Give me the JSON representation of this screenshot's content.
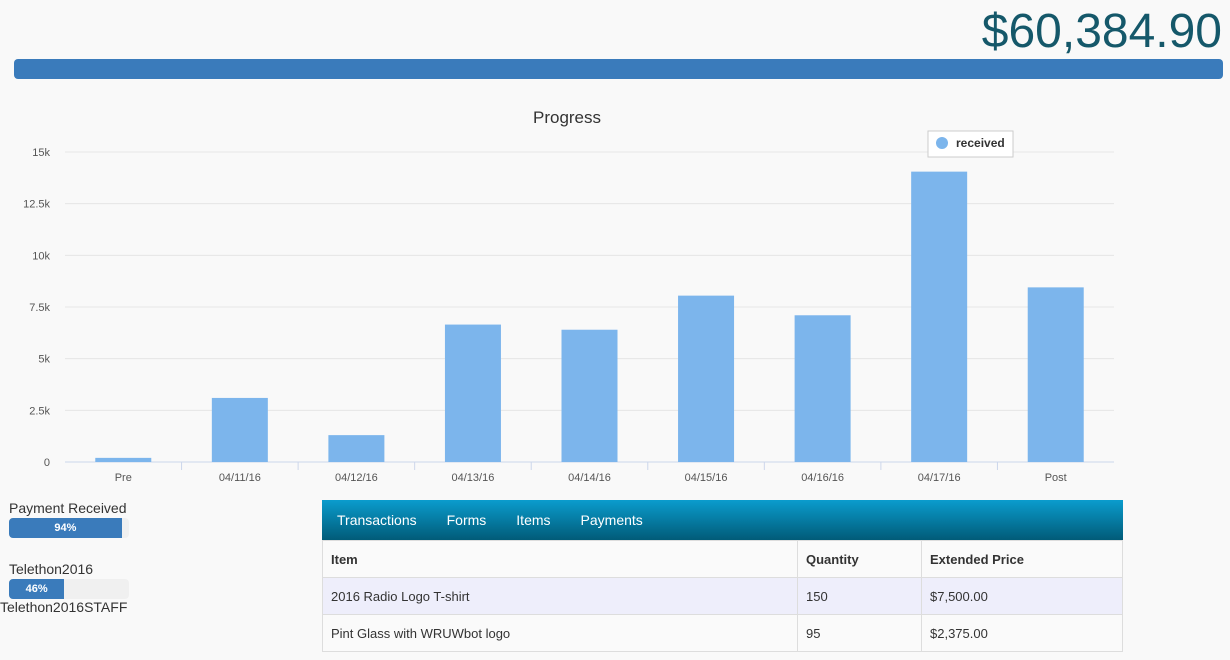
{
  "header": {
    "total": "$60,384.90",
    "progress_fraction": 1.0
  },
  "chart_data": {
    "type": "bar",
    "title": "Progress",
    "categories": [
      "Pre",
      "04/11/16",
      "04/12/16",
      "04/13/16",
      "04/14/16",
      "04/15/16",
      "04/16/16",
      "04/17/16",
      "Post"
    ],
    "series": [
      {
        "name": "received",
        "values": [
          200,
          3100,
          1300,
          6650,
          6400,
          8050,
          7100,
          14050,
          8450
        ]
      }
    ],
    "ylim": [
      0,
      15000
    ],
    "yticks": [
      "0",
      "2.5k",
      "5k",
      "7.5k",
      "10k",
      "12.5k",
      "15k"
    ],
    "legend_position": "top-right",
    "grid": true,
    "color": "#7cb5ec"
  },
  "side": {
    "payment_received": {
      "label": "Payment Received",
      "percent_text": "94%",
      "percent": 94
    },
    "telethon": {
      "label": "Telethon2016",
      "percent_text": "46%",
      "percent": 46
    },
    "staff_label": "Telethon2016STAFF"
  },
  "panel": {
    "tabs": [
      "Transactions",
      "Forms",
      "Items",
      "Payments"
    ],
    "columns": [
      "Item",
      "Quantity",
      "Extended Price"
    ],
    "rows": [
      [
        "2016 Radio Logo T-shirt",
        "150",
        "$7,500.00"
      ],
      [
        "Pint Glass with WRUWbot logo",
        "95",
        "$2,375.00"
      ]
    ]
  }
}
